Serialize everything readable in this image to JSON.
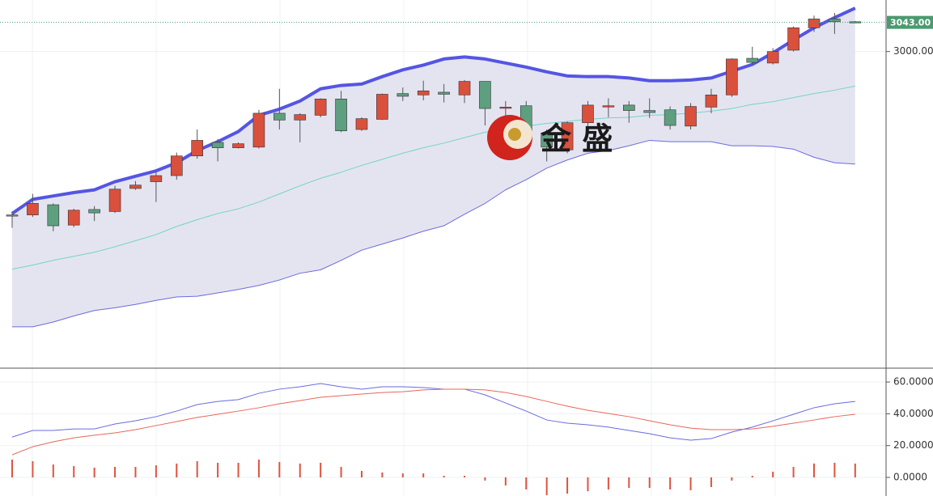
{
  "chart_data": [
    {
      "type": "candlestick",
      "open": [
        2759,
        2759,
        2774,
        2744,
        2767,
        2764,
        2798,
        2808,
        2817,
        2846,
        2866,
        2858,
        2859,
        2909,
        2899,
        2906,
        2930,
        2885,
        2900,
        2938,
        2936,
        2940,
        2936,
        2956,
        2917,
        2920,
        2879,
        2855,
        2895,
        2919,
        2921,
        2913,
        2914,
        2890,
        2918,
        2936,
        2990,
        2983,
        3002,
        3035,
        3048,
        3044
      ],
      "high": [
        2764,
        2790,
        2776,
        2768,
        2772,
        2802,
        2809,
        2823,
        2851,
        2885,
        2871,
        2866,
        2914,
        2945,
        2909,
        2931,
        2942,
        2903,
        2938,
        2947,
        2957,
        2952,
        2958,
        2956,
        2927,
        2927,
        2885,
        2897,
        2927,
        2931,
        2927,
        2931,
        2919,
        2924,
        2945,
        2990,
        3007,
        3005,
        3037,
        3053,
        3057,
        3045
      ],
      "low": [
        2740,
        2756,
        2735,
        2741,
        2750,
        2762,
        2796,
        2778,
        2811,
        2842,
        2838,
        2857,
        2857,
        2885,
        2866,
        2903,
        2881,
        2883,
        2899,
        2927,
        2928,
        2925,
        2924,
        2891,
        2897,
        2873,
        2838,
        2850,
        2885,
        2903,
        2895,
        2902,
        2885,
        2885,
        2909,
        2933,
        2981,
        2981,
        3000,
        3029,
        3026,
        3042
      ],
      "close": [
        2758,
        2776,
        2743,
        2766,
        2762,
        2797,
        2803,
        2817,
        2846,
        2869,
        2858,
        2864,
        2909,
        2899,
        2907,
        2930,
        2883,
        2901,
        2937,
        2934,
        2942,
        2937,
        2956,
        2916,
        2918,
        2879,
        2859,
        2895,
        2921,
        2920,
        2913,
        2910,
        2891,
        2919,
        2936,
        2989,
        2984,
        3000,
        3035,
        3048,
        3044,
        3043
      ],
      "up_color": "#d9503d",
      "down_color": "#5e9f7f",
      "overlays": [
        {
          "color": "#5555e3",
          "values": [
            2761,
            2782,
            2787,
            2792,
            2796,
            2808,
            2816,
            2824,
            2836,
            2854,
            2867,
            2882,
            2906,
            2915,
            2927,
            2945,
            2950,
            2952,
            2963,
            2973,
            2980,
            2989,
            2992,
            2989,
            2983,
            2977,
            2970,
            2964,
            2963,
            2963,
            2961,
            2957,
            2957,
            2958,
            2961,
            2971,
            2981,
            2998,
            3017,
            3035,
            3050,
            3064
          ]
        },
        {
          "color": "#72d4c6",
          "values": [
            2679,
            2685,
            2692,
            2698,
            2704,
            2712,
            2721,
            2730,
            2742,
            2752,
            2761,
            2768,
            2778,
            2790,
            2802,
            2813,
            2822,
            2832,
            2841,
            2850,
            2858,
            2865,
            2873,
            2881,
            2885,
            2890,
            2894,
            2897,
            2900,
            2902,
            2903,
            2906,
            2907,
            2909,
            2912,
            2916,
            2922,
            2926,
            2932,
            2938,
            2943,
            2949
          ]
        },
        {
          "color": "#6b6be0",
          "values": [
            2594,
            2594,
            2601,
            2610,
            2618,
            2622,
            2627,
            2633,
            2638,
            2639,
            2644,
            2649,
            2655,
            2663,
            2673,
            2678,
            2692,
            2707,
            2716,
            2725,
            2735,
            2743,
            2760,
            2776,
            2796,
            2811,
            2828,
            2840,
            2850,
            2854,
            2861,
            2869,
            2867,
            2867,
            2867,
            2861,
            2861,
            2860,
            2856,
            2844,
            2836,
            2834
          ]
        }
      ],
      "band_fill": "#e4e4f1",
      "ylim": [
        2533,
        3076
      ],
      "yticks": [
        {
          "value": 3000,
          "label": "3000.00"
        }
      ],
      "last_price": {
        "value": 3043,
        "label": "3043.00",
        "color": "#4a9a70"
      },
      "grid": true
    },
    {
      "type": "macd",
      "series": [
        {
          "color": "#6a6ae0",
          "values": [
            25.4,
            29.5,
            29.5,
            30.5,
            30.5,
            33.6,
            35.6,
            38.2,
            41.7,
            45.8,
            47.8,
            48.9,
            52.9,
            55.5,
            57.0,
            59.0,
            57.0,
            55.5,
            57.0,
            57.0,
            56.5,
            55.5,
            55.5,
            51.9,
            46.8,
            41.7,
            36.1,
            34.1,
            33.1,
            31.6,
            29.5,
            27.5,
            24.9,
            23.4,
            24.4,
            28.5,
            31.6,
            35.6,
            39.7,
            43.8,
            46.3,
            47.8
          ]
        },
        {
          "color": "#e8675a",
          "values": [
            14.2,
            19.3,
            22.4,
            24.9,
            26.5,
            28.0,
            30.0,
            32.6,
            35.1,
            37.7,
            39.7,
            41.7,
            43.8,
            46.3,
            48.3,
            50.4,
            51.4,
            52.4,
            53.4,
            53.9,
            55.0,
            55.5,
            55.5,
            55.0,
            53.4,
            50.9,
            47.8,
            44.8,
            42.2,
            40.2,
            38.2,
            35.6,
            33.1,
            31.0,
            30.0,
            30.0,
            30.5,
            32.1,
            34.1,
            36.1,
            38.2,
            39.7
          ]
        }
      ],
      "bars": {
        "color": "#e0533f",
        "values": [
          11.2,
          10.2,
          8.1,
          7.1,
          6.1,
          6.6,
          6.6,
          7.6,
          8.7,
          10.2,
          9.2,
          9.2,
          11.2,
          9.7,
          8.7,
          9.2,
          6.6,
          4.1,
          3.1,
          2.5,
          2.5,
          1.0,
          1.0,
          -2.0,
          -5.1,
          -7.6,
          -11.2,
          -10.2,
          -8.7,
          -7.6,
          -6.6,
          -6.6,
          -7.6,
          -8.1,
          -6.1,
          -2.0,
          1.0,
          3.6,
          6.6,
          8.7,
          9.2,
          8.7
        ]
      },
      "ylim": [
        -11.7,
        68.7
      ],
      "yticks": [
        {
          "value": 60,
          "label": "60.0000"
        },
        {
          "value": 40,
          "label": "40.0000"
        },
        {
          "value": 20,
          "label": "20.0000"
        },
        {
          "value": 0,
          "label": "0.0000"
        }
      ],
      "grid": true
    }
  ],
  "watermark": {
    "text": "金 盛"
  }
}
